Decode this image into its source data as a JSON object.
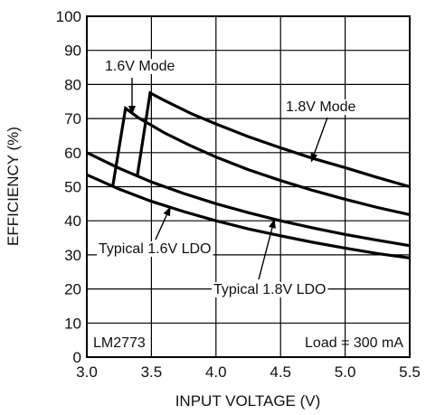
{
  "chart_data": {
    "type": "line",
    "title": "",
    "xlabel": "INPUT VOLTAGE (V)",
    "ylabel": "EFFICIENCY (%)",
    "xlim": [
      3.0,
      5.5
    ],
    "ylim": [
      0,
      100
    ],
    "x_ticks": [
      3.0,
      3.5,
      4.0,
      4.5,
      5.0,
      5.5
    ],
    "x_tick_labels": [
      "3.0",
      "3.5",
      "4.0",
      "4.5",
      "5.0",
      "5.5"
    ],
    "y_ticks": [
      0,
      10,
      20,
      30,
      40,
      50,
      60,
      70,
      80,
      90,
      100
    ],
    "y_tick_labels": [
      "0",
      "10",
      "20",
      "30",
      "40",
      "50",
      "60",
      "70",
      "80",
      "90",
      "100"
    ],
    "grid": true,
    "series": [
      {
        "name": "1.6V Mode",
        "x": [
          3.2,
          3.3,
          3.4,
          3.6,
          3.8,
          4.0,
          4.25,
          4.5,
          4.75,
          5.0,
          5.25,
          5.5
        ],
        "y": [
          50,
          73,
          70.2,
          65.8,
          62.1,
          58.7,
          55.0,
          51.8,
          48.9,
          46.3,
          43.9,
          41.8
        ]
      },
      {
        "name": "1.8V Mode",
        "x": [
          3.39,
          3.49,
          3.6,
          3.8,
          4.0,
          4.25,
          4.5,
          4.75,
          5.0,
          5.25,
          5.5
        ],
        "y": [
          53,
          77.5,
          75.3,
          71.6,
          68.4,
          64.7,
          61.4,
          58.3,
          55.6,
          52.7,
          50
        ]
      },
      {
        "name": "Typical 1.6V LDO",
        "x": [
          3.0,
          3.25,
          3.5,
          3.75,
          4.0,
          4.25,
          4.5,
          4.75,
          5.0,
          5.25,
          5.5
        ],
        "y": [
          53.5,
          49.3,
          45.7,
          42.7,
          40.0,
          37.6,
          35.6,
          33.7,
          32.0,
          30.4,
          29.1
        ]
      },
      {
        "name": "Typical 1.8V LDO",
        "x": [
          3.0,
          3.25,
          3.5,
          3.75,
          4.0,
          4.25,
          4.5,
          4.75,
          5.0,
          5.25,
          5.5
        ],
        "y": [
          60.0,
          55.4,
          51.4,
          48.0,
          45.0,
          42.4,
          40.0,
          37.9,
          36.0,
          34.3,
          32.7
        ]
      }
    ],
    "annotations": [
      {
        "text": "1.6V Mode",
        "series": 0
      },
      {
        "text": "1.8V Mode",
        "series": 1
      },
      {
        "text": "Typical 1.6V LDO",
        "series": 2
      },
      {
        "text": "Typical 1.8V LDO",
        "series": 3
      },
      {
        "text": "LM2773"
      },
      {
        "text": "Load = 300 mA"
      }
    ]
  }
}
